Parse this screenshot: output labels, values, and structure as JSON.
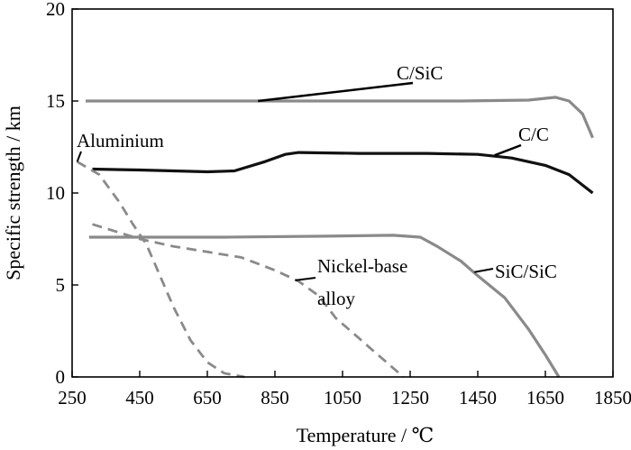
{
  "chart_data": {
    "type": "line",
    "title": "",
    "xlabel": "Temperature / ℃",
    "ylabel": "Specific strength / km",
    "xlim": [
      250,
      1850
    ],
    "ylim": [
      0,
      20
    ],
    "xticks": [
      250,
      450,
      650,
      850,
      1050,
      1250,
      1450,
      1650,
      1850
    ],
    "yticks": [
      0,
      5,
      10,
      15,
      20
    ],
    "grid": false,
    "series": [
      {
        "name": "C/SiC",
        "color": "#8a8a8a",
        "dash": "solid",
        "points": [
          [
            290,
            15.0
          ],
          [
            600,
            15.0
          ],
          [
            1000,
            15.0
          ],
          [
            1400,
            15.0
          ],
          [
            1600,
            15.05
          ],
          [
            1680,
            15.2
          ],
          [
            1720,
            15.0
          ],
          [
            1760,
            14.3
          ],
          [
            1790,
            13.0
          ]
        ]
      },
      {
        "name": "C/C",
        "color": "#111111",
        "dash": "solid",
        "points": [
          [
            310,
            11.3
          ],
          [
            450,
            11.25
          ],
          [
            550,
            11.2
          ],
          [
            650,
            11.15
          ],
          [
            730,
            11.2
          ],
          [
            820,
            11.7
          ],
          [
            880,
            12.1
          ],
          [
            920,
            12.2
          ],
          [
            1100,
            12.15
          ],
          [
            1300,
            12.15
          ],
          [
            1450,
            12.1
          ],
          [
            1550,
            11.9
          ],
          [
            1650,
            11.5
          ],
          [
            1720,
            11.0
          ],
          [
            1790,
            10.0
          ]
        ]
      },
      {
        "name": "SiC/SiC",
        "color": "#8a8a8a",
        "dash": "solid",
        "points": [
          [
            300,
            7.6
          ],
          [
            700,
            7.6
          ],
          [
            1000,
            7.65
          ],
          [
            1200,
            7.7
          ],
          [
            1280,
            7.6
          ],
          [
            1330,
            7.1
          ],
          [
            1400,
            6.3
          ],
          [
            1450,
            5.5
          ],
          [
            1530,
            4.3
          ],
          [
            1600,
            2.6
          ],
          [
            1650,
            1.2
          ],
          [
            1690,
            0.0
          ]
        ]
      },
      {
        "name": "Aluminium",
        "color": "#8a8a8a",
        "dash": "dashed",
        "points": [
          [
            265,
            11.7
          ],
          [
            330,
            11.0
          ],
          [
            390,
            9.5
          ],
          [
            430,
            8.3
          ],
          [
            470,
            7.2
          ],
          [
            510,
            5.5
          ],
          [
            550,
            3.8
          ],
          [
            600,
            2.0
          ],
          [
            650,
            0.8
          ],
          [
            700,
            0.2
          ],
          [
            760,
            0.0
          ]
        ]
      },
      {
        "name": "Nickel-base alloy",
        "color": "#8a8a8a",
        "dash": "dashed",
        "points": [
          [
            310,
            8.3
          ],
          [
            380,
            7.9
          ],
          [
            450,
            7.5
          ],
          [
            550,
            7.1
          ],
          [
            650,
            6.8
          ],
          [
            750,
            6.5
          ],
          [
            850,
            5.8
          ],
          [
            920,
            5.2
          ],
          [
            980,
            4.4
          ],
          [
            1030,
            3.2
          ],
          [
            1080,
            2.4
          ],
          [
            1130,
            1.6
          ],
          [
            1180,
            0.8
          ],
          [
            1230,
            0.0
          ]
        ]
      }
    ],
    "annotations": [
      {
        "text": "C/SiC",
        "series": "C/SiC"
      },
      {
        "text": "C/C",
        "series": "C/C"
      },
      {
        "text": "Aluminium",
        "series": "Aluminium"
      },
      {
        "text": "Nickel-base",
        "series": "Nickel-base alloy"
      },
      {
        "text": "alloy",
        "series": "Nickel-base alloy"
      },
      {
        "text": "SiC/SiC",
        "series": "SiC/SiC"
      }
    ]
  }
}
